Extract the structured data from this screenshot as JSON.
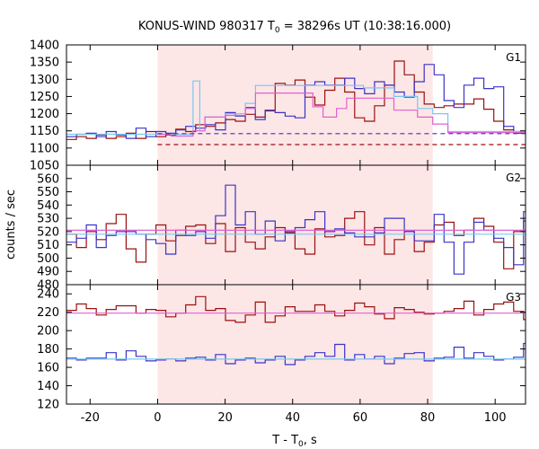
{
  "chart_data": {
    "type": "line",
    "title": {
      "prefix": "KONUS-WIND 980317 T",
      "sub": "0",
      "suffix": " = 38296s UT (10:38:16.000)"
    },
    "xlabel": {
      "prefix": "T - T",
      "sub": "0",
      "suffix": ", s"
    },
    "ylabel": "counts / sec",
    "xlim": [
      -27,
      109
    ],
    "xticks": [
      -20,
      0,
      20,
      40,
      60,
      80,
      100
    ],
    "shaded_interval": [
      0,
      81.5
    ],
    "colors": {
      "dark_red": "#9b0f0f",
      "blue": "#3a33c8",
      "cyan": "#78c8f0",
      "pink": "#e060d0",
      "shade": "#fde6e6"
    },
    "panels": [
      {
        "label": "G1",
        "ylim": [
          1050,
          1400
        ],
        "yticks": [
          1050,
          1100,
          1150,
          1200,
          1250,
          1300,
          1350,
          1400
        ],
        "series": [
          {
            "color": "dark_red",
            "style": "step",
            "x0": -27,
            "dx": 2.944,
            "values": [
              1125,
              1133,
              1128,
              1138,
              1128,
              1133,
              1143,
              1128,
              1148,
              1133,
              1138,
              1155,
              1148,
              1168,
              1163,
              1173,
              1183,
              1178,
              1198,
              1190,
              1210,
              1288,
              1283,
              1298,
              1248,
              1225,
              1268,
              1303,
              1263,
              1188,
              1178,
              1223,
              1283,
              1353,
              1313,
              1263,
              1228,
              1218,
              1223,
              1228,
              1228,
              1243,
              1213,
              1178,
              1153,
              1143,
              1148,
              1138,
              1153,
              1130,
              1148,
              1133,
              1143,
              1153,
              1123,
              1138
            ]
          },
          {
            "color": "blue",
            "style": "step",
            "x0": -27,
            "dx": 2.944,
            "values": [
              1133,
              1140,
              1143,
              1133,
              1148,
              1138,
              1128,
              1158,
              1133,
              1148,
              1143,
              1153,
              1163,
              1158,
              1168,
              1153,
              1203,
              1193,
              1218,
              1183,
              1208,
              1203,
              1193,
              1188,
              1283,
              1293,
              1283,
              1283,
              1303,
              1273,
              1258,
              1293,
              1283,
              1263,
              1248,
              1293,
              1343,
              1313,
              1238,
              1218,
              1283,
              1303,
              1273,
              1278,
              1163,
              1148,
              1143,
              1153,
              1138,
              1148,
              1143,
              1133,
              1153,
              1148,
              1143,
              1148
            ]
          },
          {
            "color": "cyan",
            "style": "step",
            "x": [
              -27,
              10.5,
              10.5,
              12.5,
              12.5,
              14,
              14,
              20,
              20,
              26,
              26,
              29,
              29,
              61,
              61,
              70,
              70,
              77,
              77,
              81.5,
              81.5,
              86,
              86,
              109
            ],
            "y": [
              1140,
              1140,
              1295,
              1295,
              1150,
              1150,
              1190,
              1190,
              1200,
              1200,
              1230,
              1230,
              1282,
              1282,
              1275,
              1275,
              1250,
              1250,
              1215,
              1215,
              1200,
              1200,
              1148,
              1148
            ]
          },
          {
            "color": "pink",
            "style": "step",
            "x": [
              0,
              4,
              4,
              10.5,
              10.5,
              14,
              14,
              20,
              20,
              26,
              26,
              29,
              29,
              46,
              46,
              49,
              49,
              53,
              53,
              56,
              56,
              70,
              70,
              77,
              77,
              81.5,
              81.5,
              86,
              86,
              109
            ],
            "y": [
              1140,
              1140,
              1135,
              1135,
              1150,
              1150,
              1190,
              1190,
              1195,
              1195,
              1215,
              1215,
              1260,
              1260,
              1220,
              1220,
              1190,
              1190,
              1215,
              1215,
              1245,
              1245,
              1210,
              1210,
              1190,
              1190,
              1170,
              1170,
              1145,
              1145
            ]
          },
          {
            "color": "blue",
            "style": "dash",
            "x": [
              0,
              109
            ],
            "y": [
              1142,
              1142
            ]
          },
          {
            "color": "dark_red",
            "style": "dash",
            "x": [
              0,
              109
            ],
            "y": [
              1110,
              1110
            ]
          }
        ]
      },
      {
        "label": "G2",
        "ylim": [
          480,
          570
        ],
        "yticks": [
          480,
          490,
          500,
          510,
          520,
          530,
          540,
          550,
          560
        ],
        "series": [
          {
            "color": "dark_red",
            "style": "step",
            "x0": -27,
            "dx": 2.944,
            "values": [
              518,
              508,
              520,
              514,
              526,
              533,
              507,
              497,
              518,
              525,
              513,
              517,
              524,
              525,
              511,
              526,
              505,
              523,
              512,
              507,
              516,
              523,
              519,
              507,
              503,
              522,
              516,
              517,
              530,
              535,
              510,
              523,
              503,
              514,
              520,
              505,
              512,
              525,
              527,
              517,
              521,
              530,
              524,
              512,
              492,
              520,
              528,
              529,
              514,
              519,
              524,
              526,
              533,
              518,
              512,
              520
            ]
          },
          {
            "color": "blue",
            "style": "step",
            "x0": -27,
            "dx": 2.944,
            "values": [
              512,
              515,
              525,
              508,
              517,
              520,
              520,
              518,
              514,
              511,
              503,
              521,
              517,
              520,
              515,
              532,
              555,
              525,
              535,
              518,
              528,
              513,
              520,
              523,
              529,
              535,
              520,
              522,
              519,
              516,
              516,
              519,
              530,
              530,
              520,
              513,
              513,
              533,
              512,
              488,
              512,
              527,
              521,
              515,
              508,
              495,
              535,
              534,
              523,
              519,
              515,
              530,
              516,
              523,
              510,
              523
            ]
          },
          {
            "color": "cyan",
            "style": "line",
            "x": [
              -27,
              109
            ],
            "y": [
              518,
              518
            ]
          },
          {
            "color": "pink",
            "style": "line",
            "x": [
              -27,
              109
            ],
            "y": [
              521,
              521
            ]
          }
        ]
      },
      {
        "label": "G3",
        "ylim": [
          120,
          250
        ],
        "yticks": [
          120,
          140,
          160,
          180,
          200,
          220,
          240
        ],
        "series": [
          {
            "color": "dark_red",
            "style": "step",
            "x0": -27,
            "dx": 2.944,
            "values": [
              222,
              229,
              224,
              217,
              223,
              227,
              227,
              219,
              223,
              222,
              215,
              219,
              228,
              237,
              222,
              224,
              211,
              209,
              217,
              231,
              209,
              216,
              226,
              221,
              221,
              228,
              221,
              216,
              222,
              230,
              226,
              218,
              213,
              225,
              223,
              220,
              218,
              219,
              221,
              224,
              232,
              217,
              223,
              229,
              231,
              221,
              212,
              227,
              215,
              218,
              223,
              209,
              204,
              218,
              231,
              228
            ]
          },
          {
            "color": "blue",
            "style": "step",
            "x0": -27,
            "dx": 2.944,
            "values": [
              170,
              168,
              170,
              170,
              176,
              168,
              178,
              172,
              167,
              168,
              169,
              167,
              170,
              171,
              168,
              174,
              164,
              168,
              170,
              165,
              168,
              172,
              163,
              168,
              172,
              176,
              172,
              185,
              168,
              174,
              169,
              172,
              164,
              170,
              175,
              176,
              167,
              170,
              171,
              182,
              170,
              176,
              172,
              168,
              169,
              171,
              186,
              170,
              173,
              176,
              168,
              171,
              162,
              170,
              175,
              166
            ]
          },
          {
            "color": "cyan",
            "style": "line",
            "x": [
              -27,
              109
            ],
            "y": [
              169,
              169
            ]
          },
          {
            "color": "pink",
            "style": "line",
            "x": [
              -27,
              109
            ],
            "y": [
              219,
              219
            ]
          }
        ]
      }
    ]
  }
}
